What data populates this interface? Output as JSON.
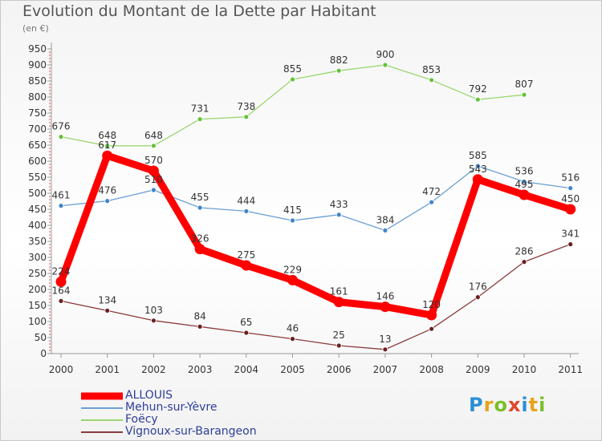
{
  "title": "Evolution du Montant de la Dette par Habitant",
  "unit": "(en €)",
  "logo_letters": [
    {
      "ch": "P",
      "color": "#2b8fd6"
    },
    {
      "ch": "r",
      "color": "#e8a21c"
    },
    {
      "ch": "o",
      "color": "#7bbf2a"
    },
    {
      "ch": "x",
      "color": "#e2452b"
    },
    {
      "ch": "i",
      "color": "#2b8fd6"
    },
    {
      "ch": "t",
      "color": "#e8a21c"
    },
    {
      "ch": "i",
      "color": "#7bbf2a"
    }
  ],
  "chart_data": {
    "type": "line",
    "x": [
      "2000",
      "2001",
      "2002",
      "2003",
      "2004",
      "2005",
      "2006",
      "2007",
      "2008",
      "2009",
      "2010",
      "2011"
    ],
    "ylim": [
      0,
      950
    ],
    "yticks": [
      0,
      50,
      100,
      150,
      200,
      250,
      300,
      350,
      400,
      450,
      500,
      550,
      600,
      650,
      700,
      750,
      800,
      850,
      900,
      950
    ],
    "grid": false,
    "legend_position": "bottom-left",
    "series": [
      {
        "name": "ALLOUIS",
        "color": "#ff0000",
        "marker_color": "#ff0000",
        "width": "thick",
        "values": [
          224,
          617,
          570,
          326,
          275,
          229,
          161,
          146,
          120,
          543,
          495,
          450
        ]
      },
      {
        "name": "Mehun-sur-Yèvre",
        "color": "#6a9fd4",
        "marker_color": "#3f86c8",
        "width": "thin",
        "values": [
          461,
          476,
          510,
          455,
          444,
          415,
          433,
          384,
          472,
          585,
          536,
          516
        ]
      },
      {
        "name": "Foëcy",
        "color": "#9ad670",
        "marker_color": "#66c13a",
        "width": "thin",
        "values": [
          676,
          648,
          648,
          731,
          738,
          855,
          882,
          900,
          853,
          792,
          807,
          null
        ]
      },
      {
        "name": "Vignoux-sur-Barangeon",
        "color": "#8a3b3b",
        "marker_color": "#6b2020",
        "width": "thin",
        "values": [
          164,
          134,
          103,
          84,
          65,
          46,
          25,
          13,
          77,
          176,
          286,
          341
        ]
      }
    ],
    "data_labels": [
      [
        "224",
        "617",
        "570",
        "326",
        "275",
        "229",
        "161",
        "146",
        "120",
        "543",
        "495",
        "450"
      ],
      [
        "461",
        "476",
        "510",
        "455",
        "444",
        "415",
        "433",
        "384",
        "472",
        "585",
        "536",
        "516"
      ],
      [
        "676",
        "648",
        "648",
        "731",
        "738",
        "855",
        "882",
        "900",
        "853",
        "792",
        "807",
        null
      ],
      [
        "164",
        "134",
        "103",
        "84",
        "65",
        "46",
        "25",
        "13",
        null,
        "176",
        "286",
        "341"
      ]
    ]
  }
}
